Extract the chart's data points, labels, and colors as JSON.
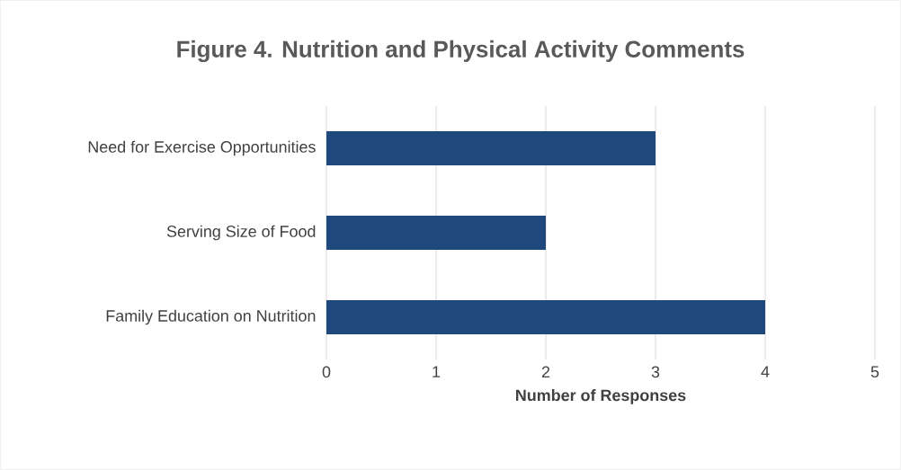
{
  "chart_data": {
    "type": "bar",
    "orientation": "horizontal",
    "title": "Figure 4. Nutrition and Physical Activity Comments",
    "categories": [
      "Need for Exercise Opportunities",
      "Serving Size of Food",
      "Family Education on Nutrition"
    ],
    "values": [
      3,
      2,
      4
    ],
    "color": "#1f497d",
    "xlabel": "Number of Responses",
    "xlim": [
      0,
      5
    ],
    "xticks": [
      0,
      1,
      2,
      3,
      4,
      5
    ],
    "grid": "x"
  }
}
